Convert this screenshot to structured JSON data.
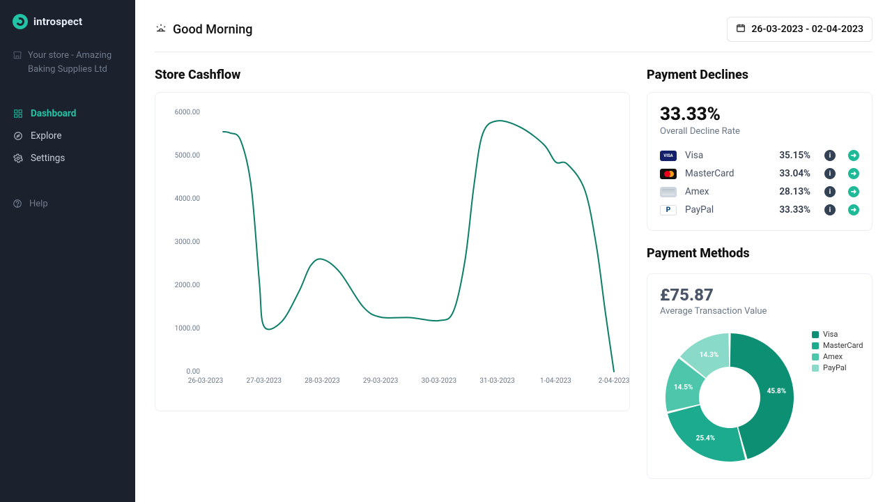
{
  "brand": {
    "name": "introspect"
  },
  "store": {
    "label": "Your store - Amazing Baking Supplies Ltd"
  },
  "nav": {
    "dashboard": "Dashboard",
    "explore": "Explore",
    "settings": "Settings",
    "help": "Help"
  },
  "header": {
    "greeting": "Good Morning",
    "date_range": "26-03-2023 - 02-04-2023"
  },
  "cashflow": {
    "title": "Store Cashflow",
    "type": "line",
    "line_color": "#0d7f68",
    "line_width": 2,
    "background_color": "#ffffff",
    "grid": false,
    "y": {
      "min": 0,
      "max": 6000,
      "step": 1000,
      "labels": [
        "0.00",
        "1000.00",
        "2000.00",
        "3000.00",
        "4000.00",
        "5000.00",
        "6000.00"
      ]
    },
    "x": {
      "labels": [
        "26-03-2023",
        "27-03-2023",
        "28-03-2023",
        "29-03-2023",
        "30-03-2023",
        "31-03-2023",
        "1-04-2023",
        "2-04-2023"
      ]
    },
    "points": [
      [
        0.3,
        5550
      ],
      [
        0.42,
        5520
      ],
      [
        0.6,
        5350
      ],
      [
        0.78,
        4300
      ],
      [
        0.92,
        2100
      ],
      [
        1.0,
        1050
      ],
      [
        1.3,
        1150
      ],
      [
        1.6,
        1850
      ],
      [
        1.8,
        2450
      ],
      [
        2.0,
        2600
      ],
      [
        2.3,
        2300
      ],
      [
        2.7,
        1500
      ],
      [
        3.0,
        1260
      ],
      [
        3.5,
        1250
      ],
      [
        4.0,
        1180
      ],
      [
        4.25,
        1400
      ],
      [
        4.45,
        2600
      ],
      [
        4.6,
        4300
      ],
      [
        4.75,
        5500
      ],
      [
        5.0,
        5800
      ],
      [
        5.4,
        5650
      ],
      [
        5.8,
        5250
      ],
      [
        6.0,
        4850
      ],
      [
        6.2,
        4800
      ],
      [
        6.5,
        4200
      ],
      [
        6.7,
        2900
      ],
      [
        6.85,
        1400
      ],
      [
        7.0,
        0
      ]
    ]
  },
  "declines": {
    "title": "Payment Declines",
    "overall_pct": "33.33%",
    "overall_label": "Overall Decline Rate",
    "rows": [
      {
        "name": "Visa",
        "pct": "35.15%",
        "card": "visa"
      },
      {
        "name": "MasterCard",
        "pct": "33.04%",
        "card": "mc"
      },
      {
        "name": "Amex",
        "pct": "28.13%",
        "card": "amex"
      },
      {
        "name": "PayPal",
        "pct": "33.33%",
        "card": "paypal"
      }
    ]
  },
  "methods": {
    "title": "Payment Methods",
    "atv": "£75.87",
    "atv_label": "Average Transaction Value",
    "donut": {
      "inner_radius": 44,
      "outer_radius": 92,
      "gap_deg": 2,
      "slices": [
        {
          "label": "Visa",
          "pct": 45.8,
          "color": "#0d8f74",
          "text": "45.8%"
        },
        {
          "label": "MasterCard",
          "pct": 25.4,
          "color": "#1cab8e",
          "text": "25.4%"
        },
        {
          "label": "Amex",
          "pct": 14.5,
          "color": "#4dc6ac",
          "text": "14.5%"
        },
        {
          "label": "PayPal",
          "pct": 14.3,
          "color": "#8adac9",
          "text": "14.3%"
        }
      ]
    }
  }
}
